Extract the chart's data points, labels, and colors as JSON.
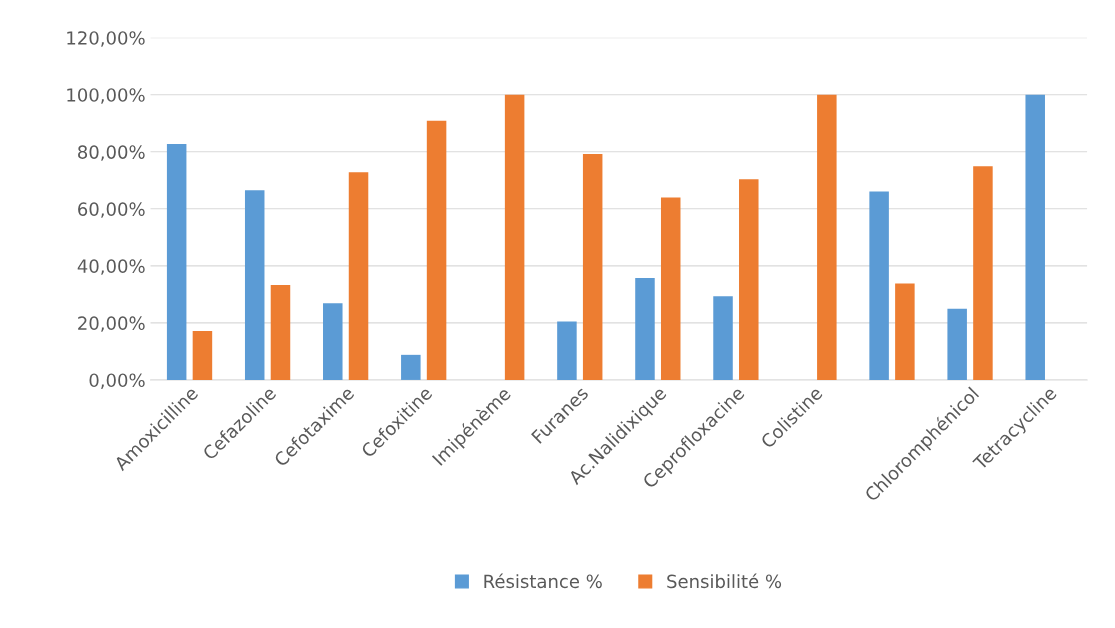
{
  "chart_data": {
    "type": "bar",
    "categories": [
      "Amoxicilline",
      "Cefazoline",
      "Cefotaxime",
      "Cefoxitine",
      "Imipénème",
      "Furanes",
      "Ac.Nalidixique",
      "Ceprofloxacine",
      "Colistine",
      null,
      "Chloromphénicol",
      "Tetracycline"
    ],
    "series": [
      {
        "name": "Résistance %",
        "color": "#5b9bd5",
        "values": [
          82.7,
          66.5,
          26.9,
          8.8,
          0,
          20.5,
          35.7,
          29.3,
          0,
          66.1,
          25.0,
          100
        ]
      },
      {
        "name": "Sensibilité %",
        "color": "#ed7d31",
        "values": [
          17.2,
          33.3,
          72.8,
          90.9,
          100,
          79.2,
          64.0,
          70.4,
          100,
          33.8,
          74.9,
          0
        ]
      }
    ],
    "ylim": [
      0,
      120
    ],
    "yticks": [
      {
        "value": 0,
        "label": "0,00%"
      },
      {
        "value": 20,
        "label": "20,00%"
      },
      {
        "value": 40,
        "label": "40,00%"
      },
      {
        "value": 60,
        "label": "60,00%"
      },
      {
        "value": 80,
        "label": "80,00%"
      },
      {
        "value": 100,
        "label": "100,00%"
      },
      {
        "value": 120,
        "label": "120,00%"
      }
    ],
    "grid": "y",
    "legend": "bottom"
  }
}
